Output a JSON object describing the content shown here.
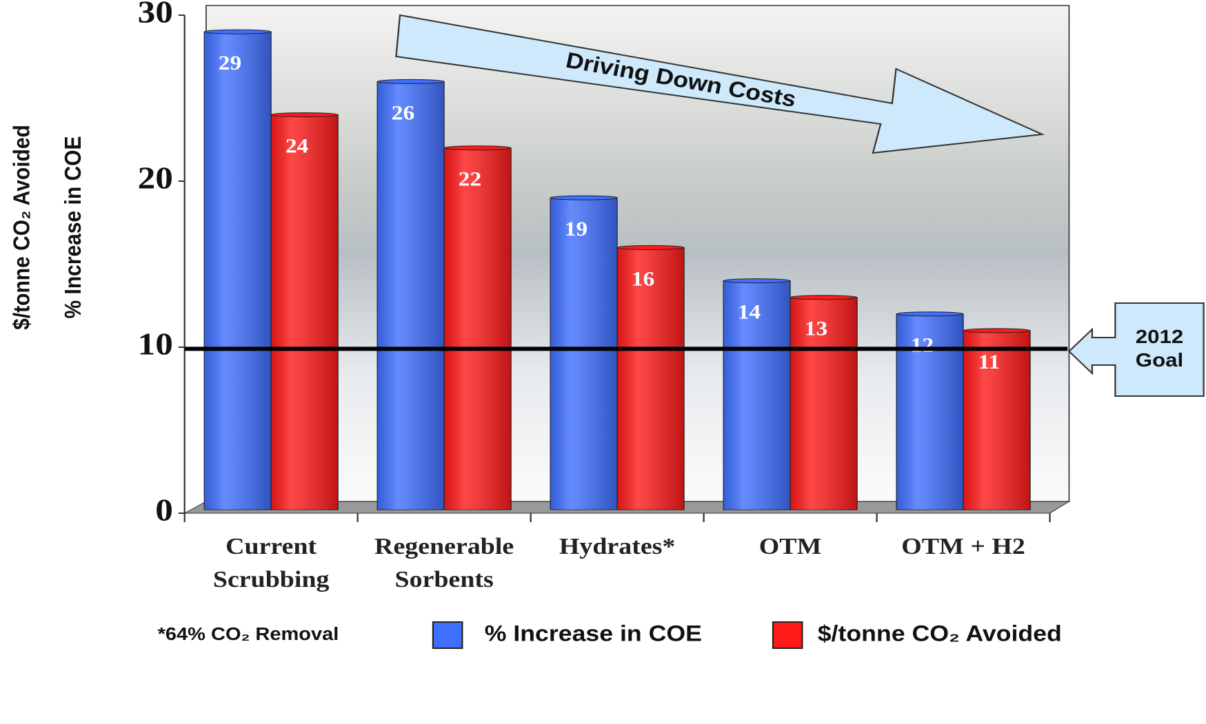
{
  "chart_data": {
    "type": "bar",
    "y_axis_labels": [
      "$/tonne CO₂ Avoided",
      "% Increase in COE"
    ],
    "categories": [
      "Current Scrubbing",
      "Regenerable Sorbents",
      "Hydrates*",
      "OTM",
      "OTM + H2"
    ],
    "series": [
      {
        "name": "% Increase in COE",
        "color": "#3f6fff",
        "values": [
          29,
          26,
          19,
          14,
          12
        ]
      },
      {
        "name": "$/tonne CO₂ Avoided",
        "color": "#ff1a1a",
        "values": [
          24,
          22,
          16,
          13,
          11
        ]
      }
    ],
    "ylim": [
      0,
      30
    ],
    "yticks": [
      0,
      10,
      20,
      30
    ],
    "reference_line": {
      "label": "2012 Goal",
      "value": 9.9
    },
    "annotation": "Driving Down Costs",
    "footnote": "*64% CO₂ Removal"
  }
}
